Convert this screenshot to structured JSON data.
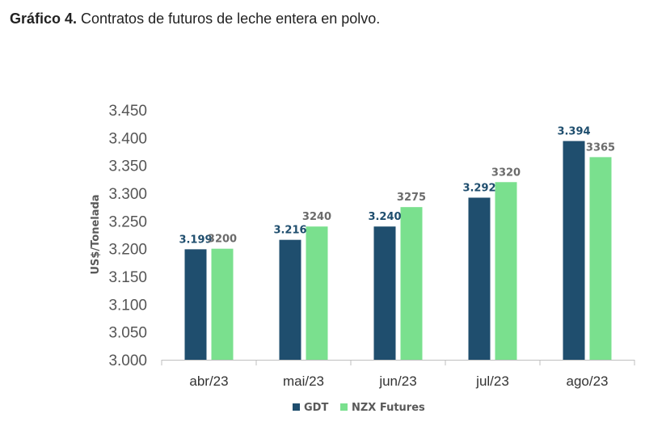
{
  "caption": {
    "prefix": "Gráfico 4.",
    "text": " Contratos de futuros de leche entera en polvo."
  },
  "colors": {
    "gdt": "#1f4e6e",
    "nzx": "#7ae08e",
    "gdt_label": "#1f4e6e",
    "nzx_label": "#6b6b6b",
    "axis": "#bfbfbf"
  },
  "chart_data": {
    "type": "bar",
    "title": "",
    "xlabel": "",
    "ylabel": "US$/Tonelada",
    "ylim": [
      3000,
      3450
    ],
    "yticks": [
      3000,
      3050,
      3100,
      3150,
      3200,
      3250,
      3300,
      3350,
      3400,
      3450
    ],
    "ytick_labels": [
      "3.000",
      "3.050",
      "3.100",
      "3.150",
      "3.200",
      "3.250",
      "3.300",
      "3.350",
      "3.400",
      "3.450"
    ],
    "categories": [
      "abr/23",
      "mai/23",
      "jun/23",
      "jul/23",
      "ago/23"
    ],
    "series": [
      {
        "name": "GDT",
        "values": [
          3199,
          3216,
          3240,
          3292,
          3394
        ],
        "labels": [
          "3.199",
          "3.216",
          "3.240",
          "3.292",
          "3.394"
        ]
      },
      {
        "name": "NZX Futures",
        "values": [
          3200,
          3240,
          3275,
          3320,
          3365
        ],
        "labels": [
          "3200",
          "3240",
          "3275",
          "3320",
          "3365"
        ]
      }
    ],
    "legend_position": "bottom-center",
    "grid": false
  }
}
